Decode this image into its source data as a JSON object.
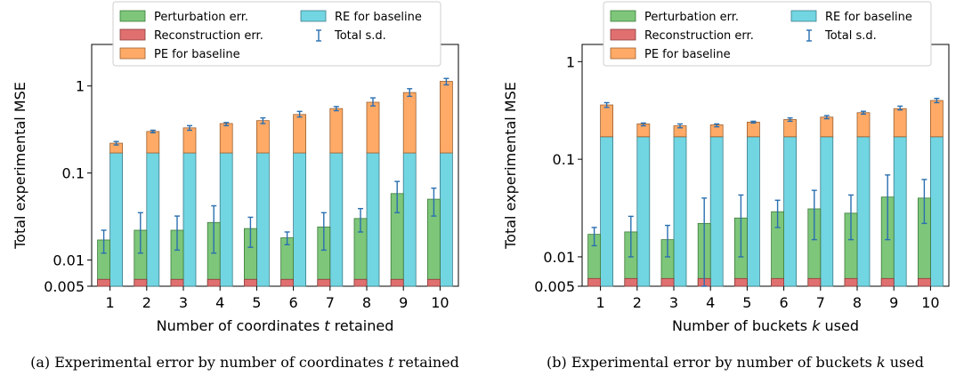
{
  "colors": {
    "perturbation": "#7dc67a",
    "reconstruction": "#e07070",
    "pe_baseline": "#ffaa66",
    "re_baseline": "#72d5e2",
    "errorbar": "#2a6fb0"
  },
  "legend": {
    "perturbation": "Perturbation err.",
    "reconstruction": "Reconstruction err.",
    "pe_baseline": "PE for baseline",
    "re_baseline": "RE for baseline",
    "total_sd": "Total s.d."
  },
  "chart_data": [
    {
      "type": "bar",
      "caption_prefix": "(a) Experimental error by number of coordinates ",
      "caption_var": "t",
      "caption_suffix": " retained",
      "xlabel_prefix": "Number of coordinates ",
      "xlabel_var": "t",
      "xlabel_suffix": " retained",
      "ylabel": "Total experimental MSE",
      "yscale": "log",
      "ylim": [
        0.005,
        3
      ],
      "yticks": [
        0.005,
        0.01,
        0.1,
        1
      ],
      "ytick_labels": [
        "0.005",
        "0.01",
        "0.1",
        "1"
      ],
      "categories": [
        "1",
        "2",
        "3",
        "4",
        "5",
        "6",
        "7",
        "8",
        "9",
        "10"
      ],
      "series": [
        {
          "key": "reconstruction",
          "name": "Reconstruction err.",
          "values": [
            0.006,
            0.006,
            0.006,
            0.006,
            0.006,
            0.006,
            0.006,
            0.006,
            0.006,
            0.006
          ]
        },
        {
          "key": "perturbation",
          "name": "Perturbation err.",
          "values": [
            0.017,
            0.022,
            0.022,
            0.027,
            0.023,
            0.018,
            0.024,
            0.03,
            0.058,
            0.05
          ]
        },
        {
          "key": "re_baseline",
          "name": "RE for baseline",
          "values": [
            0.17,
            0.17,
            0.17,
            0.17,
            0.17,
            0.17,
            0.17,
            0.17,
            0.17,
            0.17
          ]
        },
        {
          "key": "pe_baseline",
          "name": "PE for baseline",
          "values": [
            0.22,
            0.3,
            0.33,
            0.37,
            0.4,
            0.47,
            0.55,
            0.65,
            0.84,
            1.13
          ]
        }
      ],
      "error_bars": {
        "perturbation": [
          [
            0.012,
            0.022
          ],
          [
            0.012,
            0.035
          ],
          [
            0.013,
            0.032
          ],
          [
            0.012,
            0.042
          ],
          [
            0.014,
            0.031
          ],
          [
            0.015,
            0.021
          ],
          [
            0.013,
            0.035
          ],
          [
            0.021,
            0.039
          ],
          [
            0.035,
            0.08
          ],
          [
            0.032,
            0.067
          ]
        ],
        "pe_baseline": [
          [
            0.21,
            0.23
          ],
          [
            0.29,
            0.31
          ],
          [
            0.31,
            0.35
          ],
          [
            0.35,
            0.38
          ],
          [
            0.37,
            0.43
          ],
          [
            0.44,
            0.51
          ],
          [
            0.52,
            0.58
          ],
          [
            0.59,
            0.73
          ],
          [
            0.76,
            0.93
          ],
          [
            1.03,
            1.22
          ]
        ]
      },
      "legend_position": "top-left"
    },
    {
      "type": "bar",
      "caption_prefix": "(b) Experimental error by number of buckets ",
      "caption_var": "k",
      "caption_suffix": " used",
      "xlabel_prefix": "Number of buckets ",
      "xlabel_var": "k",
      "xlabel_suffix": " used",
      "ylabel": "Total experimental MSE",
      "yscale": "log",
      "ylim": [
        0.005,
        1.5
      ],
      "yticks": [
        0.005,
        0.01,
        0.1,
        1
      ],
      "ytick_labels": [
        "0.005",
        "0.01",
        "0.1",
        "1"
      ],
      "categories": [
        "1",
        "2",
        "3",
        "4",
        "5",
        "6",
        "7",
        "8",
        "9",
        "10"
      ],
      "series": [
        {
          "key": "reconstruction",
          "name": "Reconstruction err.",
          "values": [
            0.006,
            0.006,
            0.006,
            0.006,
            0.006,
            0.006,
            0.006,
            0.006,
            0.006,
            0.006
          ]
        },
        {
          "key": "perturbation",
          "name": "Perturbation err.",
          "values": [
            0.017,
            0.018,
            0.015,
            0.022,
            0.025,
            0.029,
            0.031,
            0.028,
            0.041,
            0.04
          ]
        },
        {
          "key": "re_baseline",
          "name": "RE for baseline",
          "values": [
            0.17,
            0.17,
            0.17,
            0.17,
            0.17,
            0.17,
            0.17,
            0.17,
            0.17,
            0.17
          ]
        },
        {
          "key": "pe_baseline",
          "name": "PE for baseline",
          "values": [
            0.36,
            0.23,
            0.22,
            0.225,
            0.24,
            0.255,
            0.27,
            0.3,
            0.33,
            0.4
          ]
        }
      ],
      "error_bars": {
        "perturbation": [
          [
            0.013,
            0.02
          ],
          [
            0.01,
            0.026
          ],
          [
            0.01,
            0.021
          ],
          [
            0.005,
            0.04
          ],
          [
            0.01,
            0.043
          ],
          [
            0.02,
            0.038
          ],
          [
            0.015,
            0.048
          ],
          [
            0.015,
            0.043
          ],
          [
            0.015,
            0.069
          ],
          [
            0.022,
            0.062
          ]
        ],
        "pe_baseline": [
          [
            0.34,
            0.38
          ],
          [
            0.22,
            0.235
          ],
          [
            0.21,
            0.23
          ],
          [
            0.215,
            0.23
          ],
          [
            0.235,
            0.245
          ],
          [
            0.245,
            0.265
          ],
          [
            0.26,
            0.28
          ],
          [
            0.29,
            0.31
          ],
          [
            0.32,
            0.35
          ],
          [
            0.38,
            0.42
          ]
        ]
      },
      "legend_position": "top-left"
    }
  ]
}
